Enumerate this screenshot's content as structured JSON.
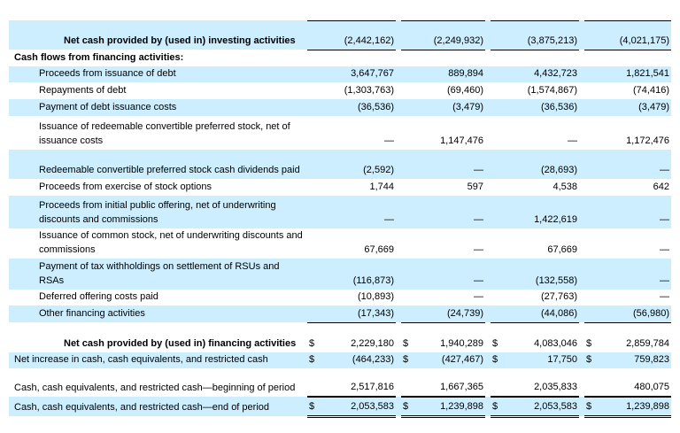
{
  "rows": [
    {
      "label": "Net cash provided by (used in) investing activities",
      "indent": 3,
      "bold": true,
      "hl": true,
      "h": 33,
      "rule": "under",
      "dollar": false,
      "values": [
        "(2,442,162)",
        "(2,249,932)",
        "(3,875,213)",
        "(4,021,175)"
      ]
    },
    {
      "label": "Cash flows from financing activities:",
      "indent": 1,
      "bold": true,
      "hl": false,
      "h": 19,
      "values": [
        "",
        "",
        "",
        ""
      ]
    },
    {
      "label": "Proceeds from issuance of debt",
      "indent": 2,
      "hl": true,
      "h": 18,
      "values": [
        "3,647,767",
        "889,894",
        "4,432,723",
        "1,821,541"
      ]
    },
    {
      "label": "Repayments of debt",
      "indent": 2,
      "hl": false,
      "h": 19,
      "values": [
        "(1,303,763)",
        "(69,460)",
        "(1,574,867)",
        "(74,416)"
      ]
    },
    {
      "label": "Payment of debt issuance costs",
      "indent": 2,
      "hl": true,
      "h": 19,
      "values": [
        "(36,536)",
        "(3,479)",
        "(36,536)",
        "(3,479)"
      ]
    },
    {
      "label": "Issuance of redeemable convertible preferred stock, net of issuance costs",
      "indent": 2,
      "hl": false,
      "h": 38,
      "values": [
        "—",
        "1,147,476",
        "—",
        "1,172,476"
      ]
    },
    {
      "label": "Redeemable convertible preferred stock cash dividends paid",
      "indent": 2,
      "hl": true,
      "h": 33,
      "values": [
        "(2,592)",
        "—",
        "(28,693)",
        "—"
      ]
    },
    {
      "label": "Proceeds from exercise of stock options",
      "indent": 2,
      "hl": false,
      "h": 19,
      "values": [
        "1,744",
        "597",
        "4,538",
        "642"
      ]
    },
    {
      "label": "Proceeds from initial public offering, net of underwriting discounts and commissions",
      "indent": 2,
      "hl": true,
      "h": 37,
      "values": [
        "—",
        "—",
        "1,422,619",
        "—"
      ]
    },
    {
      "label": "Issuance of common stock, net of underwriting discounts and commissions",
      "indent": 2,
      "hl": false,
      "h": 33,
      "values": [
        "67,669",
        "—",
        "67,669",
        "—"
      ]
    },
    {
      "label": "Payment of tax withholdings on settlement of RSUs and RSAs",
      "indent": 2,
      "hl": true,
      "h": 35,
      "values": [
        "(116,873)",
        "—",
        "(132,558)",
        "—"
      ]
    },
    {
      "label": "Deferred offering costs paid",
      "indent": 2,
      "hl": false,
      "h": 18,
      "values": [
        "(10,893)",
        "—",
        "(27,763)",
        "—"
      ]
    },
    {
      "label": "Other financing activities",
      "indent": 2,
      "hl": true,
      "h": 19,
      "rule": "under",
      "values": [
        "(17,343)",
        "(24,739)",
        "(44,086)",
        "(56,980)"
      ]
    },
    {
      "label": "Net cash provided by (used in) financing activities",
      "indent": 3,
      "bold": true,
      "hl": false,
      "h": 34,
      "dollar": true,
      "values": [
        "2,229,180",
        "1,940,289",
        "4,083,046",
        "2,859,784"
      ]
    },
    {
      "label": "Net increase in cash, cash equivalents, and restricted cash",
      "indent": 1,
      "hl": true,
      "h": 18,
      "dollar": true,
      "values": [
        "(464,233)",
        "(427,467)",
        "17,750",
        "759,823"
      ]
    },
    {
      "label": "Cash, cash equivalents, and restricted cash—beginning of period",
      "indent": 1,
      "hl": false,
      "h": 32,
      "rule": "thick",
      "values": [
        "2,517,816",
        "1,667,365",
        "2,035,833",
        "480,075"
      ]
    },
    {
      "label": "Cash, cash equivalents, and restricted cash—end of period",
      "indent": 1,
      "hl": true,
      "h": 22,
      "dollar": true,
      "rule": "dbl",
      "values": [
        "2,053,583",
        "1,239,898",
        "2,053,583",
        "1,239,898"
      ]
    }
  ],
  "currency_symbol": "$",
  "colors": {
    "highlight": "#cceeff"
  }
}
